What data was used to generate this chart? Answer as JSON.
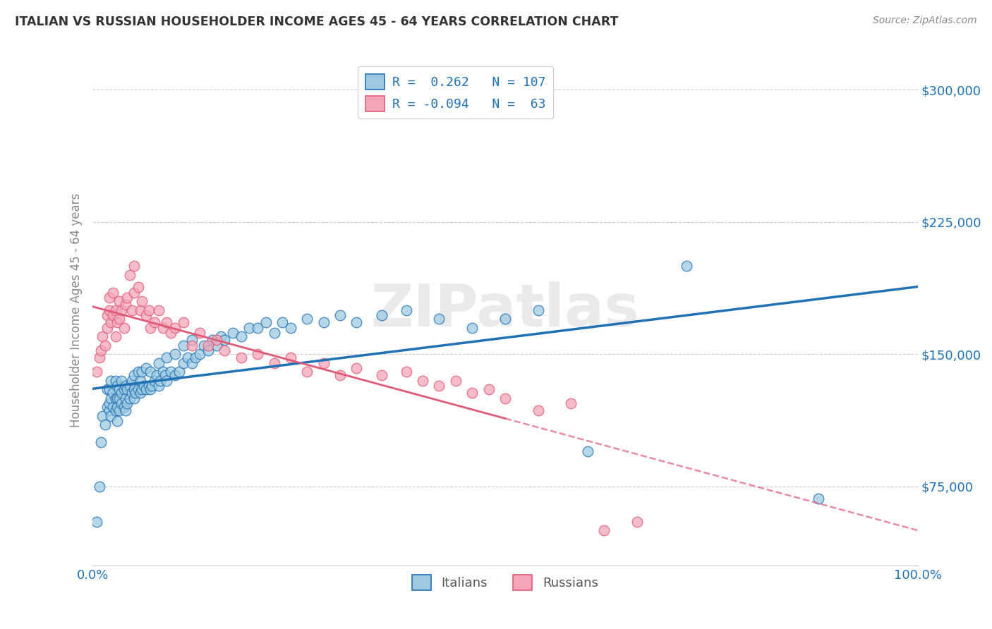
{
  "title": "ITALIAN VS RUSSIAN HOUSEHOLDER INCOME AGES 45 - 64 YEARS CORRELATION CHART",
  "source": "Source: ZipAtlas.com",
  "ylabel": "Householder Income Ages 45 - 64 years",
  "yticks": [
    75000,
    150000,
    225000,
    300000
  ],
  "ytick_labels": [
    "$75,000",
    "$150,000",
    "$225,000",
    "$300,000"
  ],
  "xlim": [
    0.0,
    1.0
  ],
  "ylim": [
    30000,
    320000
  ],
  "italian_R": 0.262,
  "italian_N": 107,
  "russian_R": -0.094,
  "russian_N": 63,
  "italian_color": "#9ECAE1",
  "russian_color": "#F4A6B8",
  "italian_line_color": "#2171B5",
  "russian_line_color": "#E05A78",
  "watermark": "ZIPatlas",
  "legend_italian_label": "Italians",
  "legend_russian_label": "Russians",
  "italian_scatter_x": [
    0.005,
    0.008,
    0.01,
    0.012,
    0.015,
    0.018,
    0.018,
    0.02,
    0.02,
    0.02,
    0.022,
    0.022,
    0.022,
    0.025,
    0.025,
    0.028,
    0.028,
    0.028,
    0.03,
    0.03,
    0.03,
    0.03,
    0.032,
    0.032,
    0.032,
    0.035,
    0.035,
    0.035,
    0.038,
    0.038,
    0.04,
    0.04,
    0.04,
    0.042,
    0.042,
    0.045,
    0.045,
    0.048,
    0.048,
    0.05,
    0.05,
    0.05,
    0.052,
    0.055,
    0.055,
    0.058,
    0.058,
    0.06,
    0.06,
    0.062,
    0.065,
    0.065,
    0.068,
    0.07,
    0.07,
    0.072,
    0.075,
    0.078,
    0.08,
    0.08,
    0.082,
    0.085,
    0.088,
    0.09,
    0.09,
    0.095,
    0.1,
    0.1,
    0.105,
    0.11,
    0.11,
    0.115,
    0.12,
    0.12,
    0.125,
    0.13,
    0.135,
    0.14,
    0.145,
    0.15,
    0.155,
    0.16,
    0.17,
    0.18,
    0.19,
    0.2,
    0.21,
    0.22,
    0.23,
    0.24,
    0.26,
    0.28,
    0.3,
    0.32,
    0.35,
    0.38,
    0.42,
    0.46,
    0.5,
    0.54,
    0.6,
    0.72,
    0.88
  ],
  "italian_scatter_y": [
    55000,
    75000,
    100000,
    115000,
    110000,
    120000,
    130000,
    118000,
    122000,
    130000,
    115000,
    125000,
    135000,
    120000,
    128000,
    118000,
    125000,
    135000,
    112000,
    120000,
    125000,
    132000,
    118000,
    125000,
    130000,
    122000,
    128000,
    135000,
    120000,
    130000,
    118000,
    125000,
    132000,
    122000,
    130000,
    125000,
    132000,
    128000,
    135000,
    125000,
    130000,
    138000,
    128000,
    130000,
    140000,
    128000,
    135000,
    130000,
    140000,
    132000,
    130000,
    142000,
    132000,
    130000,
    140000,
    132000,
    135000,
    138000,
    132000,
    145000,
    135000,
    140000,
    138000,
    135000,
    148000,
    140000,
    138000,
    150000,
    140000,
    145000,
    155000,
    148000,
    145000,
    158000,
    148000,
    150000,
    155000,
    152000,
    158000,
    155000,
    160000,
    158000,
    162000,
    160000,
    165000,
    165000,
    168000,
    162000,
    168000,
    165000,
    170000,
    168000,
    172000,
    168000,
    172000,
    175000,
    170000,
    165000,
    170000,
    175000,
    95000,
    200000,
    68000
  ],
  "russian_scatter_x": [
    0.005,
    0.008,
    0.01,
    0.012,
    0.015,
    0.018,
    0.018,
    0.02,
    0.02,
    0.022,
    0.025,
    0.025,
    0.028,
    0.028,
    0.03,
    0.032,
    0.032,
    0.035,
    0.038,
    0.04,
    0.042,
    0.045,
    0.048,
    0.05,
    0.05,
    0.055,
    0.058,
    0.06,
    0.065,
    0.068,
    0.07,
    0.075,
    0.08,
    0.085,
    0.09,
    0.095,
    0.1,
    0.11,
    0.12,
    0.13,
    0.14,
    0.15,
    0.16,
    0.18,
    0.2,
    0.22,
    0.24,
    0.26,
    0.28,
    0.3,
    0.32,
    0.35,
    0.38,
    0.4,
    0.42,
    0.44,
    0.46,
    0.48,
    0.5,
    0.54,
    0.58,
    0.62,
    0.66
  ],
  "russian_scatter_y": [
    140000,
    148000,
    152000,
    160000,
    155000,
    165000,
    172000,
    175000,
    182000,
    168000,
    172000,
    185000,
    160000,
    175000,
    168000,
    170000,
    180000,
    175000,
    165000,
    178000,
    182000,
    195000,
    175000,
    200000,
    185000,
    188000,
    175000,
    180000,
    172000,
    175000,
    165000,
    168000,
    175000,
    165000,
    168000,
    162000,
    165000,
    168000,
    155000,
    162000,
    155000,
    158000,
    152000,
    148000,
    150000,
    145000,
    148000,
    140000,
    145000,
    138000,
    142000,
    138000,
    140000,
    135000,
    132000,
    135000,
    128000,
    130000,
    125000,
    118000,
    122000,
    50000,
    55000
  ]
}
